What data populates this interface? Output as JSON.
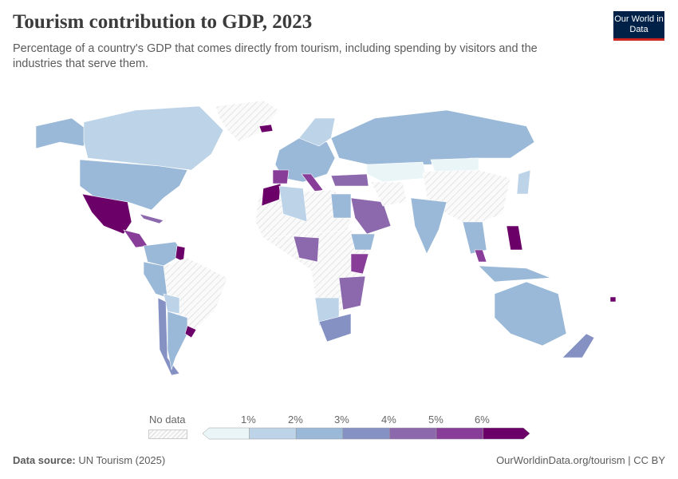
{
  "title": "Tourism contribution to GDP, 2023",
  "subtitle": "Percentage of a country's GDP that comes directly from tourism, including spending by visitors and the industries that serve them.",
  "logo": "Our World in Data",
  "legend": {
    "no_data": "No data",
    "ticks": [
      "1%",
      "2%",
      "3%",
      "4%",
      "5%",
      "6%"
    ],
    "colors": [
      "#eaf5f8",
      "#bdd3e7",
      "#9ab8d7",
      "#8691c3",
      "#8c68ad",
      "#883e99",
      "#6b0068"
    ]
  },
  "footer": {
    "source_label": "Data source:",
    "source": "UN Tourism (2025)",
    "url": "OurWorldinData.org/tourism | CC BY"
  }
}
